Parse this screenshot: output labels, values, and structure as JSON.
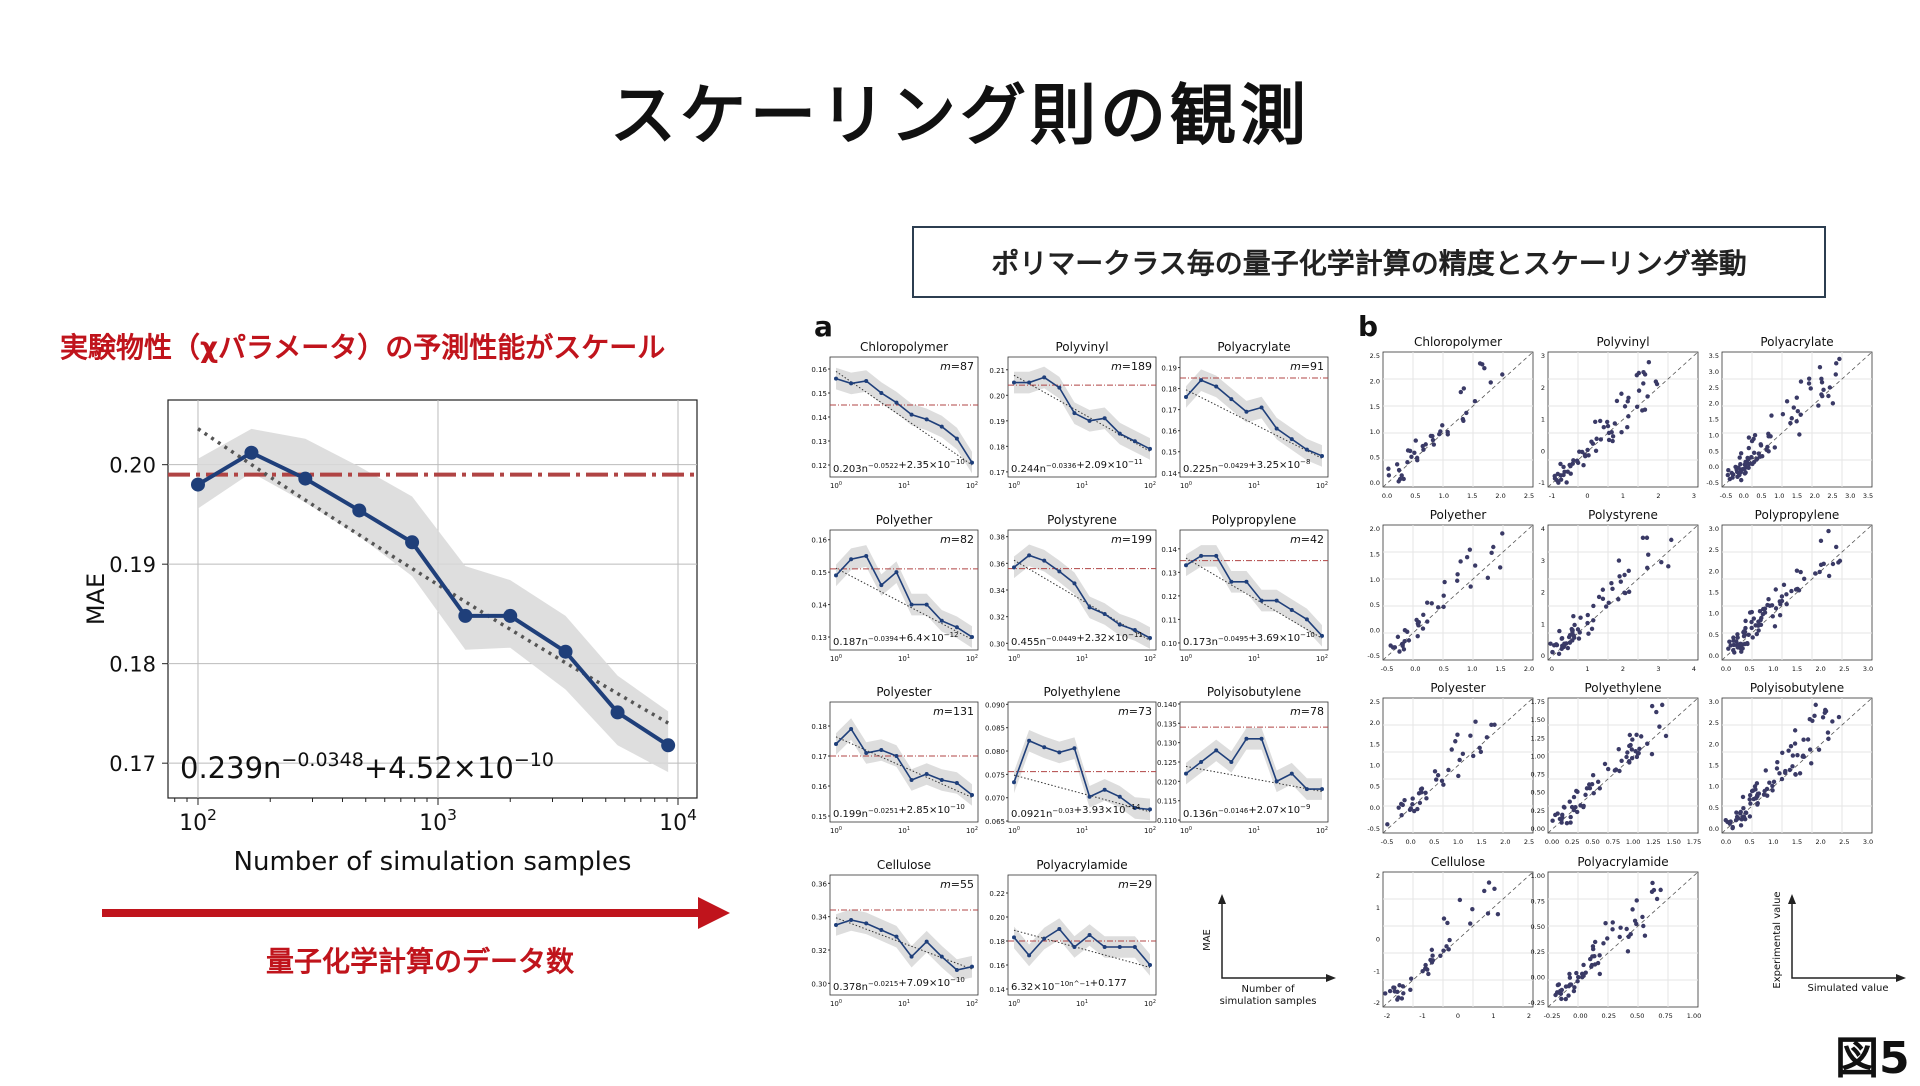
{
  "title": "スケーリング則の観測",
  "subtitle": "ポリマークラス毎の量子化学計算の精度とスケーリング挙動",
  "left_heading": "実験物性（χパラメータ）の予測性能がスケール",
  "arrow_label": "量子化学計算のデータ数",
  "figure_label": "図5",
  "panel_a_label": "a",
  "panel_b_label": "b",
  "chart_data": [
    {
      "type": "line",
      "xlabel": "Number of simulation samples",
      "ylabel": "MAE",
      "xscale": "log",
      "xlim": [
        75,
        12000
      ],
      "ylim": [
        0.1665,
        0.2065
      ],
      "xticks": [
        100,
        1000,
        10000
      ],
      "xtick_labels": [
        "10^2",
        "10^3",
        "10^4"
      ],
      "yticks": [
        0.17,
        0.18,
        0.19,
        0.2
      ],
      "ytick_labels": [
        "0.17",
        "0.18",
        "0.19",
        "0.20"
      ],
      "grid": true,
      "x": [
        100,
        167,
        280,
        470,
        780,
        1300,
        2000,
        3400,
        5600,
        9100
      ],
      "series": [
        {
          "values": [
            0.198,
            0.2012,
            0.1986,
            0.1954,
            0.1922,
            0.1848,
            0.1848,
            0.1812,
            0.1751,
            0.1718
          ]
        }
      ],
      "band": {
        "upper": [
          0.2006,
          0.2036,
          0.2026,
          0.1998,
          0.1968,
          0.1898,
          0.1884,
          0.1848,
          0.1788,
          0.1752
        ],
        "lower": [
          0.1956,
          0.1992,
          0.1962,
          0.1928,
          0.1888,
          0.1814,
          0.1816,
          0.1774,
          0.1718,
          0.1691
        ]
      },
      "baseline": 0.199,
      "fit": {
        "coef": 0.239,
        "exp": -0.0348,
        "const": "4.52×10",
        "const_exp": "−10"
      },
      "fit_label": "0.239n",
      "fit_exponent": "−0.0348",
      "fit_tail": "+4.52×10",
      "fit_tail_exp": "−10"
    },
    {
      "type": "line",
      "panel": "a",
      "xscale": "log",
      "xtick_labels": [
        "10^0",
        "10^1",
        "10^2"
      ],
      "subplots": [
        {
          "title": "Chloropolymer",
          "m": "87",
          "ylim": [
            0.115,
            0.165
          ],
          "yticks": [
            "0.12",
            "0.13",
            "0.14",
            "0.15",
            "0.16"
          ],
          "values": [
            0.156,
            0.154,
            0.155,
            0.15,
            0.146,
            0.141,
            0.139,
            0.136,
            0.131,
            0.121
          ],
          "baseline": 0.145,
          "fit": "0.203n^−0.0522+2.35×10^−10"
        },
        {
          "title": "Polyvinyl",
          "m": "189",
          "ylim": [
            0.168,
            0.215
          ],
          "yticks": [
            "0.17",
            "0.18",
            "0.19",
            "0.20",
            "0.21"
          ],
          "values": [
            0.205,
            0.205,
            0.207,
            0.203,
            0.193,
            0.19,
            0.191,
            0.185,
            0.182,
            0.179
          ],
          "baseline": 0.204,
          "fit": "0.244n^−0.0336+2.09×10^−11"
        },
        {
          "title": "Polyacrylate",
          "m": "91",
          "ylim": [
            0.138,
            0.195
          ],
          "yticks": [
            "0.14",
            "0.15",
            "0.16",
            "0.17",
            "0.18",
            "0.19"
          ],
          "values": [
            0.176,
            0.184,
            0.181,
            0.175,
            0.169,
            0.171,
            0.161,
            0.156,
            0.151,
            0.148
          ],
          "baseline": 0.185,
          "fit": "0.225n^−0.0429+3.25×10^−8"
        },
        {
          "title": "Polyether",
          "m": "82",
          "ylim": [
            0.126,
            0.163
          ],
          "yticks": [
            "0.13",
            "0.14",
            "0.15",
            "0.16"
          ],
          "values": [
            0.149,
            0.154,
            0.155,
            0.146,
            0.15,
            0.14,
            0.14,
            0.135,
            0.133,
            0.13
          ],
          "baseline": 0.151,
          "fit": "0.187n^−0.0394+6.4×10^−12"
        },
        {
          "title": "Polystyrene",
          "m": "199",
          "ylim": [
            0.295,
            0.385
          ],
          "yticks": [
            "0.30",
            "0.32",
            "0.34",
            "0.36",
            "0.38"
          ],
          "values": [
            0.357,
            0.366,
            0.362,
            0.354,
            0.345,
            0.327,
            0.322,
            0.314,
            0.31,
            0.304
          ],
          "baseline": 0.356,
          "fit": "0.455n^−0.0449+2.32×10^−11"
        },
        {
          "title": "Polypropylene",
          "m": "42",
          "ylim": [
            0.097,
            0.148
          ],
          "yticks": [
            "0.10",
            "0.11",
            "0.12",
            "0.13",
            "0.14"
          ],
          "values": [
            0.133,
            0.137,
            0.137,
            0.126,
            0.126,
            0.118,
            0.118,
            0.114,
            0.11,
            0.103
          ],
          "baseline": 0.135,
          "fit": "0.173n^−0.0495+3.69×10^−10"
        },
        {
          "title": "Polyester",
          "m": "131",
          "ylim": [
            0.148,
            0.188
          ],
          "yticks": [
            "0.15",
            "0.16",
            "0.17",
            "0.18"
          ],
          "values": [
            0.174,
            0.179,
            0.171,
            0.172,
            0.17,
            0.162,
            0.164,
            0.162,
            0.161,
            0.157
          ],
          "baseline": 0.17,
          "fit": "0.199n^−0.0251+2.85×10^−10"
        },
        {
          "title": "Polyethylene",
          "m": "73",
          "ylim": [
            0.0648,
            0.0905
          ],
          "yticks": [
            "0.065",
            "0.070",
            "0.075",
            "0.080",
            "0.085",
            "0.090"
          ],
          "values": [
            0.0733,
            0.0822,
            0.0808,
            0.0797,
            0.0806,
            0.0702,
            0.0717,
            0.0702,
            0.0678,
            0.0675
          ],
          "baseline": 0.0756,
          "fit": "0.0921n^−0.03+3.93×10^−14"
        },
        {
          "title": "Polyisobutylene",
          "m": "78",
          "ylim": [
            0.1095,
            0.1405
          ],
          "yticks": [
            "0.110",
            "0.115",
            "0.120",
            "0.125",
            "0.130",
            "0.135",
            "0.140"
          ],
          "values": [
            0.122,
            0.125,
            0.128,
            0.125,
            0.131,
            0.131,
            0.12,
            0.122,
            0.118,
            0.118
          ],
          "baseline": 0.134,
          "fit": "0.136n^−0.0146+2.07×10^−9"
        },
        {
          "title": "Cellulose",
          "m": "55",
          "ylim": [
            0.293,
            0.365
          ],
          "yticks": [
            "0.30",
            "0.32",
            "0.34",
            "0.36"
          ],
          "values": [
            0.335,
            0.338,
            0.336,
            0.332,
            0.328,
            0.316,
            0.325,
            0.316,
            0.308,
            0.31
          ],
          "baseline": 0.344,
          "fit": "0.378n^−0.0215+7.09×10^−10"
        },
        {
          "title": "Polyacrylamide",
          "m": "29",
          "ylim": [
            0.135,
            0.235
          ],
          "yticks": [
            "0.14",
            "0.16",
            "0.18",
            "0.20",
            "0.22"
          ],
          "values": [
            0.183,
            0.168,
            0.182,
            0.19,
            0.175,
            0.185,
            0.175,
            0.175,
            0.175,
            0.16
          ],
          "baseline": 0.18,
          "fit": "6.32×10^−10n^−1+0.177"
        }
      ],
      "legend_axis_y": "MAE",
      "legend_axis_x": "Number of simulation samples"
    },
    {
      "type": "scatter",
      "panel": "b",
      "subplots": [
        {
          "title": "Chloropolymer",
          "range": [
            -0.1,
            2.6
          ],
          "ticks": [
            "0.0",
            "0.5",
            "1.0",
            "1.5",
            "2.0",
            "2.5"
          ]
        },
        {
          "title": "Polyvinyl",
          "range": [
            -1.2,
            3.4
          ],
          "ticks": [
            "-1",
            "0",
            "1",
            "2",
            "3"
          ]
        },
        {
          "title": "Polyacrylate",
          "range": [
            -0.5,
            3.5
          ],
          "ticks": [
            "-0.5",
            "0.0",
            "0.5",
            "1.0",
            "1.5",
            "2.0",
            "2.5",
            "3.0",
            "3.5"
          ]
        },
        {
          "title": "Polyether",
          "range": [
            -0.6,
            2.3
          ],
          "ticks": [
            "-0.5",
            "0.0",
            "0.5",
            "1.0",
            "1.5",
            "2.0"
          ]
        },
        {
          "title": "Polystyrene",
          "range": [
            -0.5,
            4.6
          ],
          "ticks": [
            "0",
            "1",
            "2",
            "3",
            "4"
          ]
        },
        {
          "title": "Polypropylene",
          "range": [
            -0.1,
            3.1
          ],
          "ticks": [
            "0.0",
            "0.5",
            "1.0",
            "1.5",
            "2.0",
            "2.5",
            "3.0"
          ]
        },
        {
          "title": "Polyester",
          "range": [
            -0.6,
            2.8
          ],
          "ticks": [
            "-0.5",
            "0.0",
            "0.5",
            "1.0",
            "1.5",
            "2.0",
            "2.5"
          ]
        },
        {
          "title": "Polyethylene",
          "range": [
            -0.1,
            1.9
          ],
          "ticks": [
            "0.00",
            "0.25",
            "0.50",
            "0.75",
            "1.00",
            "1.25",
            "1.50",
            "1.75"
          ]
        },
        {
          "title": "Polyisobutylene",
          "range": [
            -0.1,
            3.2
          ],
          "ticks": [
            "0.0",
            "0.5",
            "1.0",
            "1.5",
            "2.0",
            "2.5",
            "3.0"
          ]
        },
        {
          "title": "Cellulose",
          "range": [
            -2.4,
            2.6
          ],
          "ticks": [
            "-2",
            "-1",
            "0",
            "1",
            "2"
          ]
        },
        {
          "title": "Polyacrylamide",
          "range": [
            -0.45,
            1.1
          ],
          "ticks": [
            "-0.25",
            "0.00",
            "0.25",
            "0.50",
            "0.75",
            "1.00"
          ]
        }
      ],
      "legend_axis_y": "Experimental value",
      "legend_axis_x": "Simulated value"
    }
  ],
  "colors": {
    "line": "#1f3f7a",
    "baseline": "#b04444",
    "band": "#d8d8d8",
    "accent_red": "#c0141c",
    "scatter": "#3a3a66"
  }
}
